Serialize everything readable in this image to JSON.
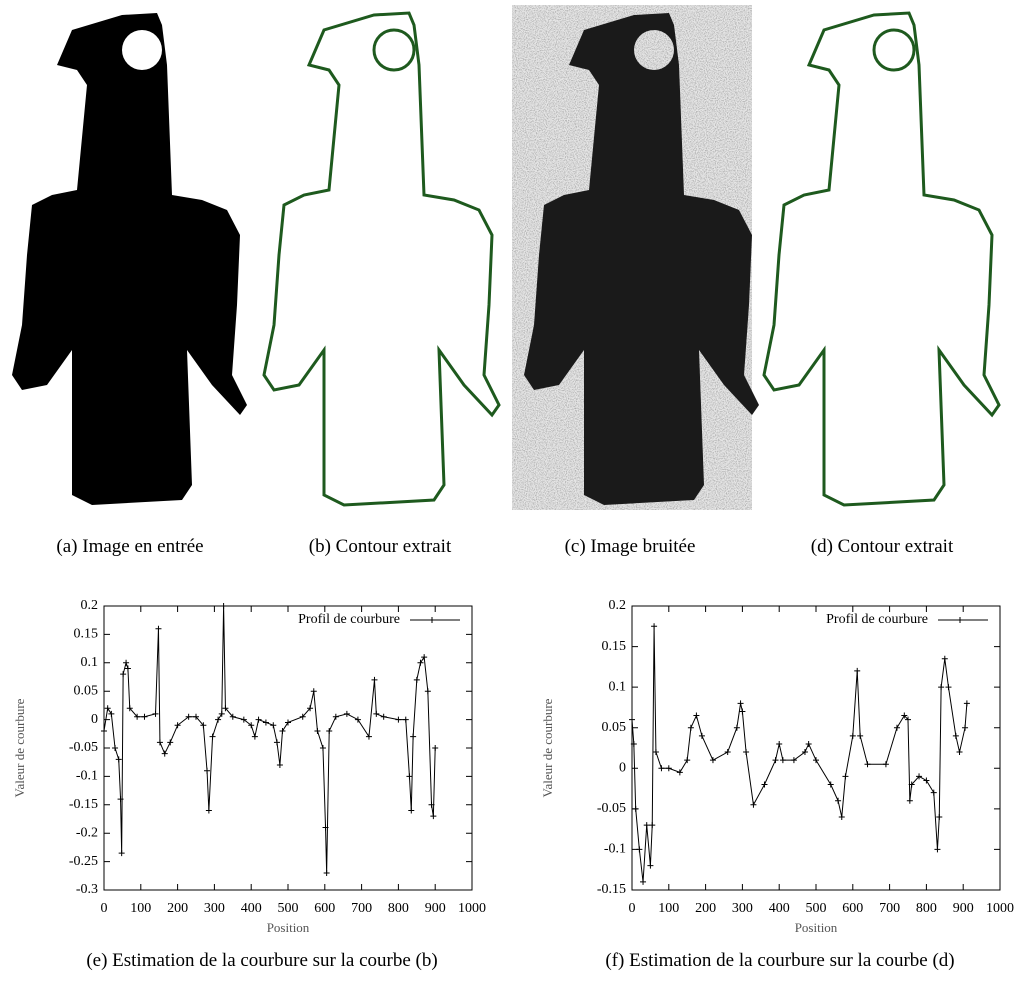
{
  "captions": [
    "(a) Image en entrée",
    "(b) Contour extrait",
    "(c) Image bruitée",
    "(d) Contour extrait",
    "(e) Estimation de la courbure sur la courbe (b)",
    "(f) Estimation de la courbure sur la courbe (d)"
  ],
  "chart_data": [
    {
      "type": "line",
      "xlabel": "Position",
      "ylabel": "Valeur de courbure",
      "legend": "upper right",
      "grid": false,
      "xlim": [
        0,
        1000
      ],
      "xticks": [
        0,
        100,
        200,
        300,
        400,
        500,
        600,
        700,
        800,
        900,
        1000
      ],
      "ylim": [
        -0.3,
        0.2
      ],
      "yticks": [
        -0.3,
        -0.25,
        -0.2,
        -0.15,
        -0.1,
        -0.05,
        0,
        0.05,
        0.1,
        0.15,
        0.2
      ],
      "x": [
        0,
        10,
        20,
        30,
        40,
        45,
        48,
        52,
        60,
        65,
        70,
        90,
        110,
        140,
        148,
        152,
        165,
        180,
        200,
        230,
        250,
        270,
        280,
        285,
        295,
        310,
        320,
        325,
        330,
        350,
        380,
        400,
        410,
        420,
        440,
        460,
        470,
        478,
        485,
        500,
        540,
        560,
        570,
        580,
        595,
        602,
        605,
        612,
        630,
        660,
        690,
        720,
        735,
        740,
        760,
        800,
        820,
        830,
        835,
        840,
        850,
        860,
        870,
        880,
        890,
        895,
        900
      ],
      "series": [
        {
          "name": "Profil de courbure",
          "color": "#000000",
          "values": [
            -0.02,
            0.02,
            0.01,
            -0.05,
            -0.07,
            -0.14,
            -0.235,
            0.08,
            0.1,
            0.09,
            0.02,
            0.005,
            0.005,
            0.01,
            0.16,
            -0.04,
            -0.06,
            -0.04,
            -0.01,
            0.005,
            0.005,
            -0.01,
            -0.09,
            -0.16,
            -0.03,
            0,
            0.01,
            0.2,
            0.02,
            0.005,
            0,
            -0.01,
            -0.03,
            0,
            -0.005,
            -0.01,
            -0.04,
            -0.08,
            -0.02,
            -0.005,
            0.005,
            0.02,
            0.05,
            -0.02,
            -0.05,
            -0.19,
            -0.27,
            -0.02,
            0.005,
            0.01,
            0,
            -0.03,
            0.07,
            0.01,
            0.005,
            0,
            0,
            -0.1,
            -0.16,
            -0.03,
            0.07,
            0.1,
            0.11,
            0.05,
            -0.15,
            -0.17,
            -0.05
          ]
        }
      ]
    },
    {
      "type": "line",
      "xlabel": "Position",
      "ylabel": "Valeur de courbure",
      "legend": "upper right",
      "grid": false,
      "xlim": [
        0,
        1000
      ],
      "xticks": [
        0,
        100,
        200,
        300,
        400,
        500,
        600,
        700,
        800,
        900,
        1000
      ],
      "ylim": [
        -0.15,
        0.2
      ],
      "yticks": [
        -0.15,
        -0.1,
        -0.05,
        0,
        0.05,
        0.1,
        0.15,
        0.2
      ],
      "x": [
        0,
        5,
        10,
        20,
        30,
        40,
        50,
        55,
        60,
        65,
        80,
        100,
        130,
        150,
        160,
        175,
        190,
        220,
        260,
        285,
        295,
        300,
        310,
        330,
        360,
        390,
        400,
        410,
        440,
        470,
        480,
        500,
        540,
        560,
        570,
        580,
        600,
        612,
        620,
        640,
        690,
        720,
        740,
        750,
        755,
        760,
        780,
        800,
        820,
        830,
        835,
        840,
        850,
        860,
        880,
        890,
        905,
        910
      ],
      "series": [
        {
          "name": "Profil de courbure",
          "color": "#000000",
          "values": [
            0.06,
            0.03,
            -0.05,
            -0.1,
            -0.14,
            -0.07,
            -0.12,
            -0.07,
            0.175,
            0.02,
            0,
            0,
            -0.005,
            0.01,
            0.05,
            0.065,
            0.04,
            0.01,
            0.02,
            0.05,
            0.08,
            0.07,
            0.02,
            -0.045,
            -0.02,
            0.01,
            0.03,
            0.01,
            0.01,
            0.02,
            0.03,
            0.01,
            -0.02,
            -0.04,
            -0.06,
            -0.01,
            0.04,
            0.12,
            0.04,
            0.005,
            0.005,
            0.05,
            0.065,
            0.06,
            -0.04,
            -0.02,
            -0.01,
            -0.015,
            -0.03,
            -0.1,
            -0.06,
            0.1,
            0.135,
            0.1,
            0.04,
            0.02,
            0.05,
            0.08
          ]
        }
      ]
    }
  ]
}
